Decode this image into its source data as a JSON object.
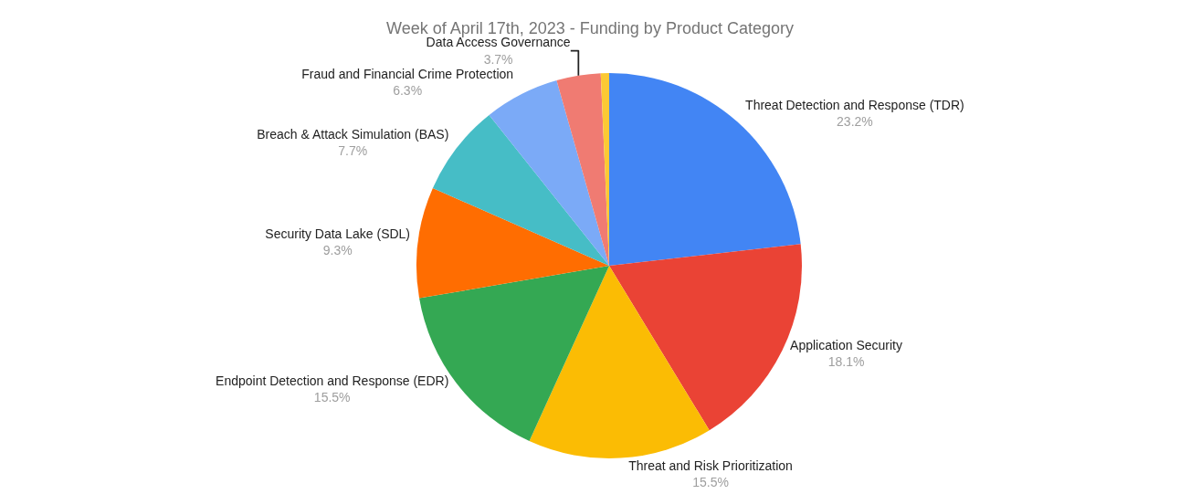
{
  "chart_data": {
    "type": "pie",
    "title": "Week of April 17th, 2023 - Funding by Product Category",
    "categories": [
      "Threat Detection and Response (TDR)",
      "Application Security",
      "Threat and Risk Prioritization",
      "Endpoint Detection and Response (EDR)",
      "Security Data Lake (SDL)",
      "Breach & Attack Simulation (BAS)",
      "Fraud and Financial Crime Protection",
      "Data Access Governance",
      null
    ],
    "values": [
      23.2,
      18.1,
      15.5,
      15.5,
      9.3,
      7.7,
      6.3,
      3.7,
      0.7
    ],
    "value_labels": [
      "23.2%",
      "18.1%",
      "15.5%",
      "15.5%",
      "9.3%",
      "7.7%",
      "6.3%",
      "3.7%",
      null
    ],
    "colors": [
      "#4285f4",
      "#ea4335",
      "#fbbc04",
      "#34a853",
      "#ff6d01",
      "#46bdc6",
      "#7baaf7",
      "#f07b72",
      "#fcc934"
    ],
    "legend": false
  }
}
